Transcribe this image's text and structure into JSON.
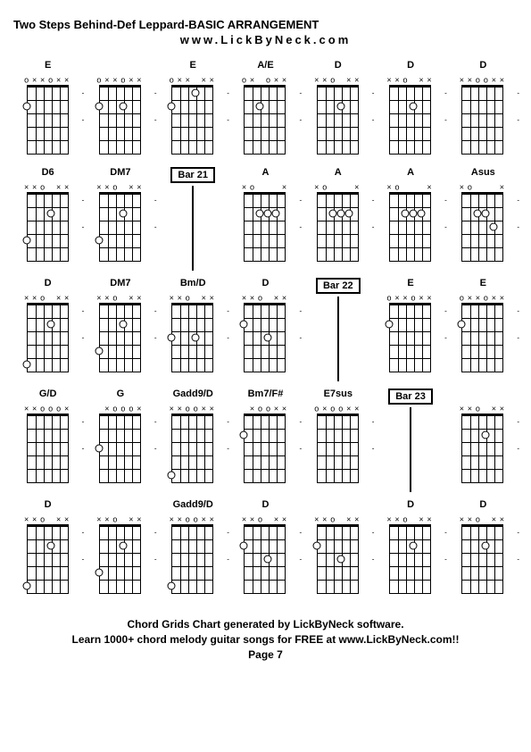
{
  "title": "Two Steps Behind-Def Leppard-BASIC ARRANGEMENT",
  "subtitle": "www.LickByNeck.com",
  "footer_line1": "Chord Grids Chart generated by LickByNeck software.",
  "footer_line2": "Learn 1000+ chord melody guitar songs for FREE at www.LickByNeck.com!!",
  "footer_line3": "Page 7",
  "strings": 6,
  "frets": 5,
  "cells": [
    {
      "type": "chord",
      "label": "E",
      "top": [
        "o",
        "x",
        "x",
        "o",
        "x",
        "x"
      ],
      "dots": [
        [
          1,
          2
        ]
      ],
      "side": [
        1,
        3
      ]
    },
    {
      "type": "chord",
      "label": "",
      "top": [
        "o",
        "x",
        "x",
        "o",
        "x",
        "x"
      ],
      "dots": [
        [
          1,
          2
        ],
        [
          4,
          2
        ]
      ],
      "side": [
        1,
        3
      ]
    },
    {
      "type": "chord",
      "label": "E",
      "top": [
        "o",
        "x",
        "x",
        "",
        "x",
        "x"
      ],
      "dots": [
        [
          1,
          2
        ],
        [
          4,
          1
        ]
      ],
      "side": [
        1,
        3
      ]
    },
    {
      "type": "chord",
      "label": "A/E",
      "top": [
        "o",
        "x",
        "",
        "o",
        "x",
        "x"
      ],
      "dots": [
        [
          3,
          2
        ]
      ],
      "side": [
        1,
        3
      ]
    },
    {
      "type": "chord",
      "label": "D",
      "top": [
        "x",
        "x",
        "o",
        "",
        "x",
        "x"
      ],
      "dots": [
        [
          4,
          2
        ]
      ],
      "side": [
        1,
        3
      ]
    },
    {
      "type": "chord",
      "label": "D",
      "top": [
        "x",
        "x",
        "o",
        "",
        "x",
        "x"
      ],
      "dots": [
        [
          4,
          2
        ]
      ],
      "side": [
        1,
        3
      ]
    },
    {
      "type": "chord",
      "label": "D",
      "top": [
        "x",
        "x",
        "o",
        "o",
        "x",
        "x"
      ],
      "dots": [],
      "side": [
        1,
        3
      ]
    },
    {
      "type": "chord",
      "label": "D6",
      "top": [
        "x",
        "x",
        "o",
        "",
        "x",
        "x"
      ],
      "dots": [
        [
          1,
          4
        ],
        [
          4,
          2
        ]
      ],
      "side": [
        1,
        3
      ]
    },
    {
      "type": "chord",
      "label": "DM7",
      "top": [
        "x",
        "x",
        "o",
        "",
        "x",
        "x"
      ],
      "dots": [
        [
          1,
          4
        ],
        [
          4,
          2
        ]
      ],
      "side": [
        1,
        3
      ]
    },
    {
      "type": "bar",
      "label": "Bar 21"
    },
    {
      "type": "chord",
      "label": "A",
      "top": [
        "x",
        "o",
        "",
        "",
        "",
        "x"
      ],
      "dots": [
        [
          3,
          2
        ],
        [
          4,
          2
        ],
        [
          5,
          2
        ]
      ],
      "side": [
        1,
        3
      ]
    },
    {
      "type": "chord",
      "label": "A",
      "top": [
        "x",
        "o",
        "",
        "",
        "",
        "x"
      ],
      "dots": [
        [
          3,
          2
        ],
        [
          4,
          2
        ],
        [
          5,
          2
        ]
      ],
      "side": [
        1,
        3
      ]
    },
    {
      "type": "chord",
      "label": "A",
      "top": [
        "x",
        "o",
        "",
        "",
        "",
        "x"
      ],
      "dots": [
        [
          3,
          2
        ],
        [
          4,
          2
        ],
        [
          5,
          2
        ]
      ],
      "side": [
        1,
        3
      ]
    },
    {
      "type": "chord",
      "label": "Asus",
      "top": [
        "x",
        "o",
        "",
        "",
        "",
        "x"
      ],
      "dots": [
        [
          3,
          2
        ],
        [
          4,
          2
        ],
        [
          5,
          3
        ]
      ],
      "side": [
        1,
        3
      ]
    },
    {
      "type": "chord",
      "label": "D",
      "top": [
        "x",
        "x",
        "o",
        "",
        "x",
        "x"
      ],
      "dots": [
        [
          1,
          5
        ],
        [
          4,
          2
        ]
      ],
      "side": [
        1,
        3
      ]
    },
    {
      "type": "chord",
      "label": "DM7",
      "top": [
        "x",
        "x",
        "o",
        "",
        "x",
        "x"
      ],
      "dots": [
        [
          1,
          4
        ],
        [
          4,
          2
        ]
      ],
      "side": [
        1,
        3
      ]
    },
    {
      "type": "chord",
      "label": "Bm/D",
      "top": [
        "x",
        "x",
        "o",
        "",
        "x",
        "x"
      ],
      "dots": [
        [
          1,
          3
        ],
        [
          4,
          3
        ]
      ],
      "side": [
        1,
        3
      ]
    },
    {
      "type": "chord",
      "label": "D",
      "top": [
        "x",
        "x",
        "o",
        "",
        "x",
        "x"
      ],
      "dots": [
        [
          1,
          2
        ],
        [
          4,
          3
        ]
      ],
      "side": [
        1,
        3
      ]
    },
    {
      "type": "bar",
      "label": "Bar 22"
    },
    {
      "type": "chord",
      "label": "E",
      "top": [
        "o",
        "x",
        "x",
        "o",
        "x",
        "x"
      ],
      "dots": [
        [
          1,
          2
        ]
      ],
      "side": [
        1,
        3
      ]
    },
    {
      "type": "chord",
      "label": "E",
      "top": [
        "o",
        "x",
        "x",
        "o",
        "x",
        "x"
      ],
      "dots": [
        [
          1,
          2
        ]
      ],
      "side": [
        1,
        3
      ]
    },
    {
      "type": "chord",
      "label": "G/D",
      "top": [
        "x",
        "x",
        "o",
        "o",
        "o",
        "x"
      ],
      "dots": [],
      "side": [
        1,
        3
      ]
    },
    {
      "type": "chord",
      "label": "G",
      "top": [
        "",
        "x",
        "o",
        "o",
        "o",
        "x"
      ],
      "dots": [
        [
          1,
          3
        ]
      ],
      "side": [
        1,
        3
      ]
    },
    {
      "type": "chord",
      "label": "Gadd9/D",
      "top": [
        "x",
        "x",
        "o",
        "o",
        "x",
        "x"
      ],
      "dots": [
        [
          1,
          5
        ]
      ],
      "side": [
        1,
        3
      ]
    },
    {
      "type": "chord",
      "label": "Bm7/F#",
      "top": [
        "",
        "x",
        "o",
        "o",
        "x",
        "x"
      ],
      "dots": [
        [
          1,
          2
        ]
      ],
      "side": [
        1,
        3
      ]
    },
    {
      "type": "chord",
      "label": "E7sus",
      "top": [
        "o",
        "x",
        "o",
        "o",
        "x",
        "x"
      ],
      "dots": [],
      "side": [
        1,
        3
      ]
    },
    {
      "type": "bar",
      "label": "Bar 23"
    },
    {
      "type": "chord",
      "label": "",
      "top": [
        "x",
        "x",
        "o",
        "",
        "x",
        "x"
      ],
      "dots": [
        [
          4,
          2
        ]
      ],
      "side": [
        1,
        3
      ]
    },
    {
      "type": "chord",
      "label": "D",
      "top": [
        "x",
        "x",
        "o",
        "",
        "x",
        "x"
      ],
      "dots": [
        [
          1,
          5
        ],
        [
          4,
          2
        ]
      ],
      "side": [
        1,
        3
      ]
    },
    {
      "type": "chord",
      "label": "",
      "top": [
        "x",
        "x",
        "o",
        "",
        "x",
        "x"
      ],
      "dots": [
        [
          1,
          4
        ],
        [
          4,
          2
        ]
      ],
      "side": [
        1,
        3
      ]
    },
    {
      "type": "chord",
      "label": "Gadd9/D",
      "top": [
        "x",
        "x",
        "o",
        "o",
        "x",
        "x"
      ],
      "dots": [
        [
          1,
          5
        ]
      ],
      "side": [
        1,
        3
      ]
    },
    {
      "type": "chord",
      "label": "D",
      "top": [
        "x",
        "x",
        "o",
        "",
        "x",
        "x"
      ],
      "dots": [
        [
          1,
          2
        ],
        [
          4,
          3
        ]
      ],
      "side": [
        1,
        3
      ]
    },
    {
      "type": "chord",
      "label": "",
      "top": [
        "x",
        "x",
        "o",
        "",
        "x",
        "x"
      ],
      "dots": [
        [
          1,
          2
        ],
        [
          4,
          3
        ]
      ],
      "side": [
        1,
        3
      ]
    },
    {
      "type": "chord",
      "label": "D",
      "top": [
        "x",
        "x",
        "o",
        "",
        "x",
        "x"
      ],
      "dots": [
        [
          4,
          2
        ]
      ],
      "side": [
        1,
        3
      ]
    },
    {
      "type": "chord",
      "label": "D",
      "top": [
        "x",
        "x",
        "o",
        "",
        "x",
        "x"
      ],
      "dots": [
        [
          4,
          2
        ]
      ],
      "side": [
        1,
        3
      ]
    }
  ]
}
